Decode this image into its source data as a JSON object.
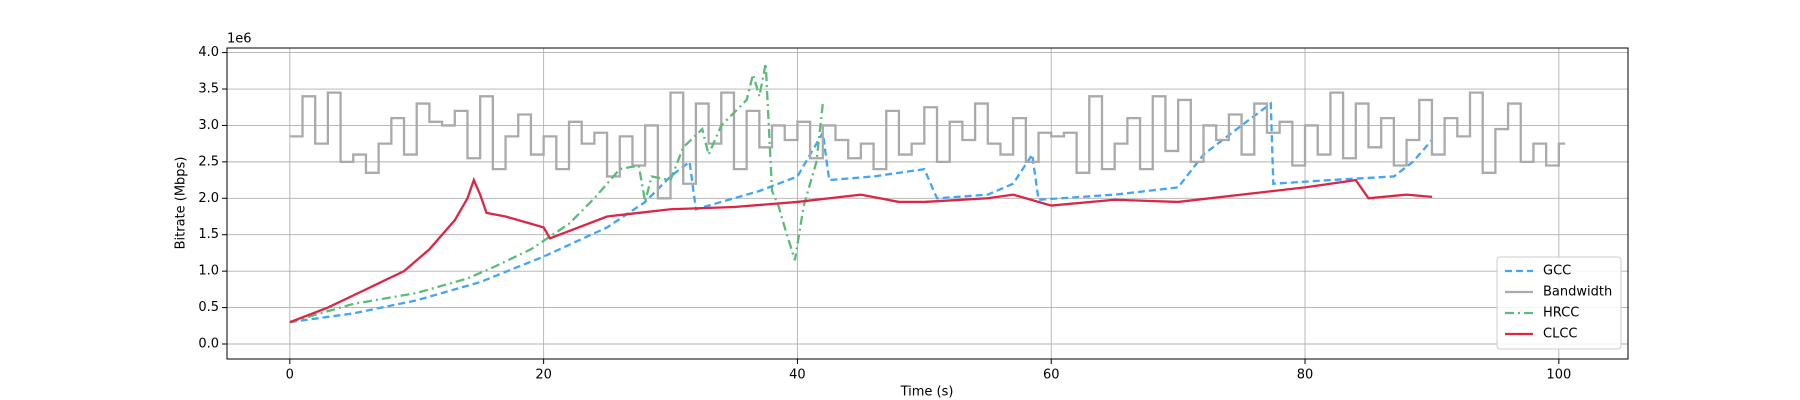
{
  "chart_data": {
    "type": "line",
    "xlabel": "Time (s)",
    "ylabel": "Bitrate (Mbps)",
    "y_offset_label": "1e6",
    "xlim": [
      -4.95,
      105.45
    ],
    "ylim": [
      -0.206,
      4.063
    ],
    "xticks": [
      0,
      20,
      40,
      60,
      80,
      100
    ],
    "yticks": [
      {
        "value": 0,
        "label": "0.0"
      },
      {
        "value": 0.5,
        "label": "0.5"
      },
      {
        "value": 1,
        "label": "1.0"
      },
      {
        "value": 1.5,
        "label": "1.5"
      },
      {
        "value": 2,
        "label": "2.0"
      },
      {
        "value": 2.5,
        "label": "2.5"
      },
      {
        "value": 3,
        "label": "3.0"
      },
      {
        "value": 3.5,
        "label": "3.5"
      },
      {
        "value": 4,
        "label": "4.0"
      }
    ],
    "grid": true,
    "legend": "lower right",
    "series": [
      {
        "name": "GCC",
        "color": "#42a5f5",
        "linestyle": "dashed",
        "x": [
          0,
          5,
          10,
          15,
          20,
          25,
          28,
          30,
          31.5,
          32,
          37,
          40,
          42,
          42.5,
          46,
          50,
          51,
          55,
          57,
          58.5,
          59,
          65,
          70,
          72,
          75,
          77.3,
          77.5,
          82,
          87,
          88.5,
          90
        ],
        "values": [
          0.3,
          0.42,
          0.6,
          0.85,
          1.2,
          1.6,
          1.95,
          2.3,
          2.5,
          1.85,
          2.1,
          2.3,
          2.9,
          2.25,
          2.3,
          2.4,
          2.0,
          2.05,
          2.2,
          2.6,
          1.98,
          2.05,
          2.15,
          2.6,
          3.0,
          3.3,
          2.2,
          2.25,
          2.3,
          2.5,
          2.8
        ]
      },
      {
        "name": "Bandwidth",
        "color": "#aaaaaa",
        "linestyle": "solid",
        "drawstyle": "steps-post",
        "x": [
          0,
          1,
          2,
          3,
          4,
          5,
          6,
          7,
          8,
          9,
          10,
          11,
          12,
          13,
          14,
          15,
          16,
          17,
          18,
          19,
          20,
          21,
          22,
          23,
          24,
          25,
          26,
          27,
          28,
          29,
          30,
          31,
          32,
          33,
          34,
          35,
          36,
          37,
          38,
          39,
          40,
          41,
          42,
          43,
          44,
          45,
          46,
          47,
          48,
          49,
          50,
          51,
          52,
          53,
          54,
          55,
          56,
          57,
          58,
          59,
          60,
          61,
          62,
          63,
          64,
          65,
          66,
          67,
          68,
          69,
          70,
          71,
          72,
          73,
          74,
          75,
          76,
          77,
          78,
          79,
          80,
          81,
          82,
          83,
          84,
          85,
          86,
          87,
          88,
          89,
          90,
          91,
          92,
          93,
          94,
          95,
          96,
          97,
          98,
          99,
          100
        ],
        "values": [
          2.85,
          3.4,
          2.75,
          3.45,
          2.5,
          2.6,
          2.35,
          2.75,
          3.1,
          2.6,
          3.3,
          3.05,
          3.0,
          3.2,
          2.55,
          3.4,
          2.4,
          2.85,
          3.15,
          2.6,
          2.85,
          2.4,
          3.05,
          2.75,
          2.9,
          2.3,
          2.85,
          2.45,
          3.0,
          2.0,
          3.45,
          2.2,
          3.3,
          2.75,
          3.45,
          2.4,
          3.2,
          2.7,
          3.0,
          2.8,
          3.05,
          2.55,
          3.0,
          2.8,
          2.55,
          2.75,
          2.4,
          3.2,
          2.6,
          2.75,
          3.25,
          2.5,
          3.05,
          2.8,
          3.3,
          2.75,
          2.6,
          3.1,
          2.5,
          2.9,
          2.85,
          2.9,
          2.35,
          3.4,
          2.4,
          2.75,
          3.1,
          2.4,
          3.4,
          2.65,
          3.35,
          2.5,
          3.0,
          2.8,
          3.15,
          2.6,
          3.3,
          2.9,
          3.05,
          2.45,
          3.0,
          2.6,
          3.45,
          2.55,
          3.3,
          2.7,
          3.1,
          2.45,
          2.8,
          3.35,
          2.6,
          3.1,
          2.85,
          3.45,
          2.35,
          2.95,
          3.3,
          2.5,
          2.75,
          2.45,
          2.75
        ]
      },
      {
        "name": "HRCC",
        "color": "#5dbb7a",
        "linestyle": "dashdot",
        "x": [
          0,
          5,
          10,
          14,
          16,
          19,
          22,
          24,
          26,
          27.5,
          28,
          28.5,
          30,
          31,
          32.5,
          33,
          34,
          36,
          36.5,
          37,
          37.5,
          38,
          38.5,
          39,
          39.8,
          40.5,
          41.5,
          42
        ],
        "values": [
          0.3,
          0.55,
          0.7,
          0.9,
          1.05,
          1.3,
          1.65,
          2.0,
          2.4,
          2.45,
          1.95,
          2.3,
          2.25,
          2.7,
          2.95,
          2.6,
          3.0,
          3.35,
          3.7,
          3.4,
          3.85,
          2.1,
          1.9,
          1.6,
          1.15,
          1.9,
          2.5,
          3.3
        ]
      },
      {
        "name": "CLCC",
        "color": "#dc2645",
        "linestyle": "solid",
        "x": [
          0,
          3,
          6,
          9,
          11,
          13,
          14,
          14.5,
          15,
          15.5,
          17,
          19,
          20,
          20.5,
          22,
          25,
          30,
          35,
          40,
          45,
          48,
          50,
          55,
          57,
          60,
          65,
          70,
          75,
          80,
          84,
          85,
          88,
          90
        ],
        "values": [
          0.3,
          0.5,
          0.75,
          1.0,
          1.3,
          1.7,
          2.0,
          2.25,
          2.05,
          1.8,
          1.75,
          1.65,
          1.6,
          1.45,
          1.55,
          1.75,
          1.85,
          1.88,
          1.95,
          2.05,
          1.95,
          1.95,
          2.0,
          2.05,
          1.9,
          1.98,
          1.95,
          2.05,
          2.15,
          2.25,
          2.0,
          2.05,
          2.02
        ]
      }
    ]
  }
}
